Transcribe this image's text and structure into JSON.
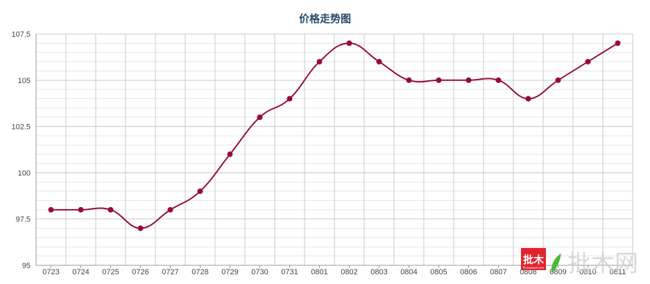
{
  "chart_data": {
    "type": "line",
    "title": "价格走势图",
    "xlabel": "",
    "ylabel": "",
    "categories": [
      "0723",
      "0724",
      "0725",
      "0726",
      "0727",
      "0728",
      "0729",
      "0730",
      "0731",
      "0801",
      "0802",
      "0803",
      "0804",
      "0805",
      "0806",
      "0807",
      "0808",
      "0809",
      "0810",
      "0811"
    ],
    "series": [
      {
        "values": [
          98,
          98,
          98,
          97,
          98,
          99,
          101,
          103,
          104,
          106,
          107,
          106,
          105,
          105,
          105,
          105,
          104,
          105,
          106,
          107
        ]
      }
    ],
    "ylim": [
      95,
      107.5
    ],
    "yticks": [
      95,
      97.5,
      100,
      102.5,
      105,
      107.5
    ],
    "ytick_labels": [
      "95",
      "97.5",
      "100",
      "102.5",
      "105",
      "107.5"
    ],
    "grid": true,
    "line_color": "#990a3b",
    "marker_color": "#990a3b"
  },
  "watermark": {
    "badge_text": "批木",
    "badge_sub": "Pimuwood.com",
    "logo_text": "批木网",
    "colors": {
      "badge": "#e0242e",
      "leaf": "#4db83a"
    }
  }
}
